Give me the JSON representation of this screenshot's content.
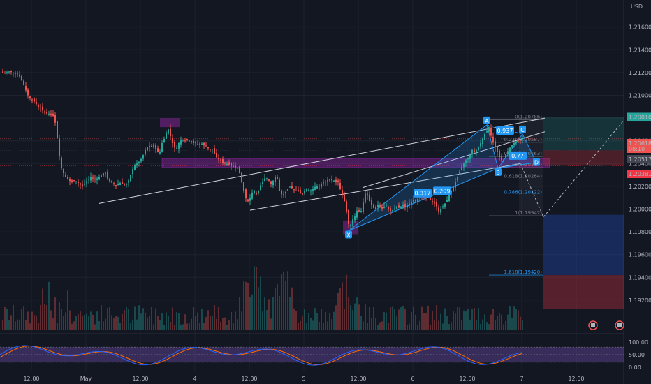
{
  "currency": "USD",
  "colors": {
    "background": "#131722",
    "grid": "#1e222d",
    "up": "#26a69a",
    "down": "#ef5350",
    "pattern": "#2196f3",
    "trendline": "#d1d4dc",
    "zone": "#9c27b0",
    "stoch_k": "#2962ff",
    "stoch_d": "#ff6d00",
    "profit": "#26a69a",
    "loss": "#f23645"
  },
  "price_scale": {
    "ticks": [
      "1.21600",
      "1.21400",
      "1.21200",
      "1.21000",
      "1.20800",
      "1.20600",
      "1.20400",
      "1.20200",
      "1.20000",
      "1.19800",
      "1.19600",
      "1.19400",
      "1.19200"
    ],
    "tags": [
      {
        "text": "1.20810",
        "value": 1.2081,
        "color": "#26a69a"
      },
      {
        "text": "1.20618",
        "value": 1.20618,
        "color": "#ef5350"
      },
      {
        "text": "08:10",
        "value": 1.20585,
        "color": "#ef5350"
      },
      {
        "text": "1.20517",
        "value": 1.20517,
        "color": "#434651"
      },
      {
        "text": "1.20381",
        "value": 1.20381,
        "color": "#f23645"
      }
    ]
  },
  "time_axis": {
    "labels": [
      "12:00",
      "May",
      "12:00",
      "4",
      "12:00",
      "5",
      "12:00",
      "6",
      "12:00",
      "7",
      "12:00"
    ]
  },
  "fib_levels": [
    {
      "ratio": "0",
      "text": "0(1.20786)",
      "value": 1.20786,
      "color": "#787b86"
    },
    {
      "ratio": "0.236",
      "text": "0.236(1.20587)",
      "value": 1.20587,
      "color": "#787b86"
    },
    {
      "ratio": "0.382",
      "text": "0.382(1.20463)",
      "value": 1.20463,
      "color": "#787b86"
    },
    {
      "ratio": "0.5",
      "text": "0.5(1.20364)",
      "value": 1.20364,
      "color": "#787b86"
    },
    {
      "ratio": "0.618",
      "text": "0.618(1.20264)",
      "value": 1.20264,
      "color": "#787b86"
    },
    {
      "ratio": "0.786",
      "text": "0.786(1.20122)",
      "value": 1.20122,
      "color": "#2196f3"
    },
    {
      "ratio": "1",
      "text": "1(1.19942)",
      "value": 1.19942,
      "color": "#787b86"
    },
    {
      "ratio": "1.618",
      "text": "1.618(1.19420)",
      "value": 1.1942,
      "color": "#2196f3"
    }
  ],
  "pattern": {
    "points": [
      "X",
      "A",
      "B",
      "C",
      "D"
    ],
    "ratios": [
      "0.317",
      "0.209",
      "0.937",
      "0.77"
    ]
  },
  "stochastic": {
    "ticks": [
      "100.00",
      "50.00",
      "0.00"
    ]
  },
  "chart_data": {
    "type": "candlestick",
    "title": "",
    "currency": "USD",
    "ylim": [
      1.191,
      1.2177
    ],
    "key_levels": {
      "take_profit": 1.2081,
      "entry": 1.20517,
      "last_price": 1.20618,
      "stop_loss": 1.20381,
      "X": 1.198,
      "A": 1.2074,
      "B": 1.2036,
      "C": 1.2066,
      "D": 1.2041
    },
    "price_path": [
      [
        1,
        1.2121
      ],
      [
        6,
        1.2119
      ],
      [
        12,
        1.2121
      ],
      [
        20,
        1.212
      ],
      [
        27,
        1.2118
      ],
      [
        32,
        1.2112
      ],
      [
        36,
        1.2106
      ],
      [
        40,
        1.21
      ],
      [
        45,
        1.2096
      ],
      [
        50,
        1.2094
      ],
      [
        55,
        1.209
      ],
      [
        60,
        1.2088
      ],
      [
        65,
        1.2084
      ],
      [
        70,
        1.2084
      ],
      [
        76,
        1.2082
      ],
      [
        80,
        1.2074
      ],
      [
        84,
        1.205
      ],
      [
        88,
        1.2036
      ],
      [
        92,
        1.203
      ],
      [
        97,
        1.2026
      ],
      [
        102,
        1.2024
      ],
      [
        108,
        1.2025
      ],
      [
        114,
        1.2022
      ],
      [
        118,
        1.202
      ],
      [
        122,
        1.2023
      ],
      [
        126,
        1.2026
      ],
      [
        130,
        1.2028
      ],
      [
        136,
        1.2026
      ],
      [
        142,
        1.2028
      ],
      [
        146,
        1.203
      ],
      [
        150,
        1.2033
      ],
      [
        154,
        1.2027
      ],
      [
        158,
        1.2024
      ],
      [
        162,
        1.2023
      ],
      [
        166,
        1.2021
      ],
      [
        172,
        1.2023
      ],
      [
        176,
        1.2022
      ],
      [
        180,
        1.2021
      ],
      [
        184,
        1.2025
      ],
      [
        188,
        1.2032
      ],
      [
        192,
        1.2038
      ],
      [
        196,
        1.204
      ],
      [
        200,
        1.2042
      ],
      [
        204,
        1.2046
      ],
      [
        208,
        1.2052
      ],
      [
        212,
        1.2055
      ],
      [
        216,
        1.2054
      ],
      [
        220,
        1.2057
      ],
      [
        224,
        1.2052
      ],
      [
        228,
        1.2048
      ],
      [
        232,
        1.2058
      ],
      [
        236,
        1.2063
      ],
      [
        240,
        1.2072
      ],
      [
        244,
        1.2064
      ],
      [
        248,
        1.2056
      ],
      [
        252,
        1.2052
      ],
      [
        256,
        1.2058
      ],
      [
        260,
        1.2062
      ],
      [
        264,
        1.206
      ],
      [
        268,
        1.2061
      ],
      [
        272,
        1.206
      ],
      [
        276,
        1.2058
      ],
      [
        280,
        1.2058
      ],
      [
        284,
        1.2057
      ],
      [
        288,
        1.2058
      ],
      [
        292,
        1.2056
      ],
      [
        296,
        1.2055
      ],
      [
        300,
        1.2052
      ],
      [
        304,
        1.2053
      ],
      [
        308,
        1.2047
      ],
      [
        312,
        1.2044
      ],
      [
        316,
        1.2043
      ],
      [
        320,
        1.204
      ],
      [
        324,
        1.204
      ],
      [
        328,
        1.2039
      ],
      [
        332,
        1.2037
      ],
      [
        336,
        1.2039
      ],
      [
        340,
        1.2036
      ],
      [
        344,
        1.203
      ],
      [
        348,
        1.2018
      ],
      [
        352,
        1.201
      ],
      [
        356,
        1.2006
      ],
      [
        360,
        1.2014
      ],
      [
        364,
        1.2016
      ],
      [
        368,
        1.2012
      ],
      [
        372,
        1.202
      ],
      [
        376,
        1.2024
      ],
      [
        380,
        1.2028
      ],
      [
        384,
        1.2026
      ],
      [
        388,
        1.2022
      ],
      [
        392,
        1.2026
      ],
      [
        396,
        1.203
      ],
      [
        400,
        1.2016
      ],
      [
        404,
        1.2012
      ],
      [
        408,
        1.2014
      ],
      [
        412,
        1.2018
      ],
      [
        416,
        1.202
      ],
      [
        420,
        1.2017
      ],
      [
        424,
        1.2018
      ],
      [
        428,
        1.2015
      ],
      [
        432,
        1.2012
      ],
      [
        436,
        1.2016
      ],
      [
        440,
        1.2018
      ],
      [
        444,
        1.2016
      ],
      [
        448,
        1.2018
      ],
      [
        452,
        1.202
      ],
      [
        456,
        1.202
      ],
      [
        460,
        1.2022
      ],
      [
        464,
        1.2024
      ],
      [
        468,
        1.2024
      ],
      [
        472,
        1.2026
      ],
      [
        476,
        1.2026
      ],
      [
        480,
        1.2024
      ],
      [
        484,
        1.2024
      ],
      [
        488,
        1.2016
      ],
      [
        492,
        1.201
      ],
      [
        496,
        1.1998
      ],
      [
        500,
        1.1983
      ],
      [
        504,
        1.199
      ],
      [
        508,
        1.1994
      ],
      [
        512,
        1.2
      ],
      [
        516,
        1.1996
      ],
      [
        520,
        1.2006
      ],
      [
        524,
        1.2016
      ],
      [
        528,
        1.2008
      ],
      [
        532,
        1.2004
      ],
      [
        536,
        1.2
      ],
      [
        540,
        1.2004
      ],
      [
        544,
        1.2002
      ],
      [
        548,
        1.2
      ],
      [
        552,
        1.2004
      ],
      [
        556,
        1.2
      ],
      [
        560,
        1.1998
      ],
      [
        564,
        1.2
      ],
      [
        568,
        1.2002
      ],
      [
        572,
        1.2001
      ],
      [
        576,
        1.2004
      ],
      [
        580,
        1.2002
      ],
      [
        584,
        1.2004
      ],
      [
        588,
        1.2006
      ],
      [
        592,
        1.2008
      ],
      [
        596,
        1.2008
      ],
      [
        600,
        1.201
      ],
      [
        604,
        1.2011
      ],
      [
        608,
        1.201
      ],
      [
        612,
        1.2012
      ],
      [
        616,
        1.2008
      ],
      [
        620,
        1.2006
      ],
      [
        624,
        1.2004
      ],
      [
        628,
        1.1998
      ],
      [
        632,
        1.2001
      ],
      [
        636,
        1.2004
      ],
      [
        640,
        1.2008
      ],
      [
        644,
        1.2014
      ],
      [
        648,
        1.2018
      ],
      [
        652,
        1.2024
      ],
      [
        656,
        1.203
      ],
      [
        660,
        1.2036
      ],
      [
        664,
        1.204
      ],
      [
        668,
        1.2044
      ],
      [
        672,
        1.2046
      ],
      [
        676,
        1.2052
      ],
      [
        680,
        1.205
      ],
      [
        684,
        1.2054
      ],
      [
        688,
        1.2058
      ],
      [
        692,
        1.2064
      ],
      [
        696,
        1.2068
      ],
      [
        700,
        1.2072
      ],
      [
        704,
        1.2062
      ],
      [
        708,
        1.2056
      ],
      [
        712,
        1.205
      ],
      [
        716,
        1.2044
      ],
      [
        720,
        1.2042
      ],
      [
        724,
        1.2048
      ],
      [
        728,
        1.2052
      ],
      [
        732,
        1.2056
      ],
      [
        736,
        1.2058
      ],
      [
        740,
        1.206
      ],
      [
        744,
        1.206
      ],
      [
        748,
        1.2062
      ]
    ]
  }
}
